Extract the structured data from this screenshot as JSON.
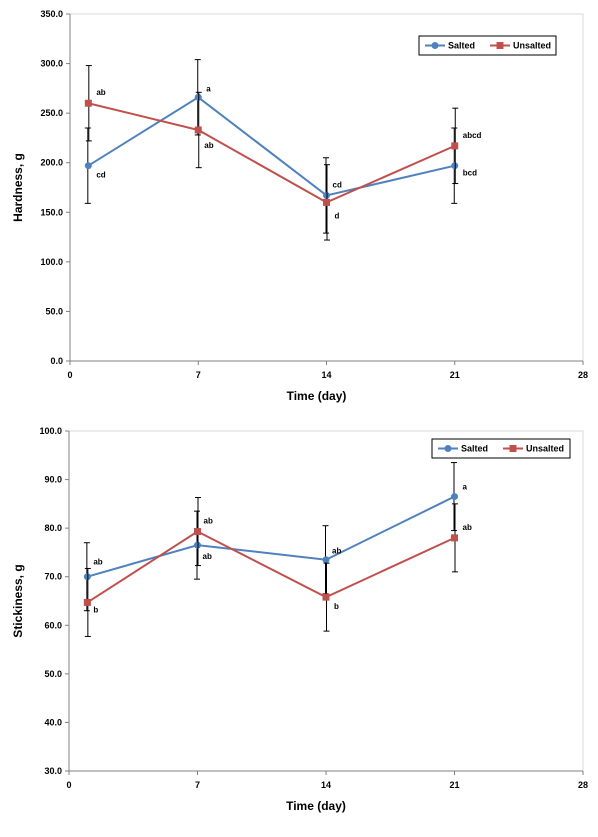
{
  "chart_data": [
    {
      "type": "line",
      "title": "",
      "xlabel": "Time (day)",
      "ylabel": "Hardness, g",
      "xlim": [
        0,
        28
      ],
      "ylim": [
        0,
        350
      ],
      "xticks": [
        "0",
        "7",
        "14",
        "21",
        "28"
      ],
      "yticks": [
        "0.0",
        "50.0",
        "100.0",
        "150.0",
        "200.0",
        "250.0",
        "300.0",
        "350.0"
      ],
      "grid": false,
      "legend_position": "top-right",
      "x": [
        1,
        7,
        14,
        21
      ],
      "series": [
        {
          "name": "Salted",
          "color": "#4f81bd",
          "marker": "circle",
          "values": [
            197,
            266,
            167,
            197
          ],
          "errors": [
            38,
            38,
            38,
            38
          ],
          "labels": [
            "cd",
            "a",
            "cd",
            "bcd"
          ]
        },
        {
          "name": "Unsalted",
          "color": "#c0504d",
          "marker": "square",
          "values": [
            260,
            233,
            160,
            217
          ],
          "errors": [
            38,
            38,
            38,
            38
          ],
          "labels": [
            "ab",
            "ab",
            "d",
            "abcd"
          ]
        }
      ]
    },
    {
      "type": "line",
      "title": "",
      "xlabel": "Time (day)",
      "ylabel": "Stickiness, g",
      "xlim": [
        0,
        28
      ],
      "ylim": [
        30,
        100
      ],
      "xticks": [
        "0",
        "7",
        "14",
        "21",
        "28"
      ],
      "yticks": [
        "30.0",
        "40.0",
        "50.0",
        "60.0",
        "70.0",
        "80.0",
        "90.0",
        "100.0"
      ],
      "grid": false,
      "legend_position": "top-right",
      "x": [
        1,
        7,
        14,
        21
      ],
      "series": [
        {
          "name": "Salted",
          "color": "#4f81bd",
          "marker": "circle",
          "values": [
            70.0,
            76.5,
            73.5,
            86.5
          ],
          "errors": [
            7,
            7,
            7,
            7
          ],
          "labels": [
            "ab",
            "ab",
            "ab",
            "a"
          ]
        },
        {
          "name": "Unsalted",
          "color": "#c0504d",
          "marker": "square",
          "values": [
            64.7,
            79.3,
            65.8,
            78.0
          ],
          "errors": [
            7,
            7,
            7,
            7
          ],
          "labels": [
            "b",
            "ab",
            "b",
            "ab"
          ]
        }
      ]
    }
  ]
}
